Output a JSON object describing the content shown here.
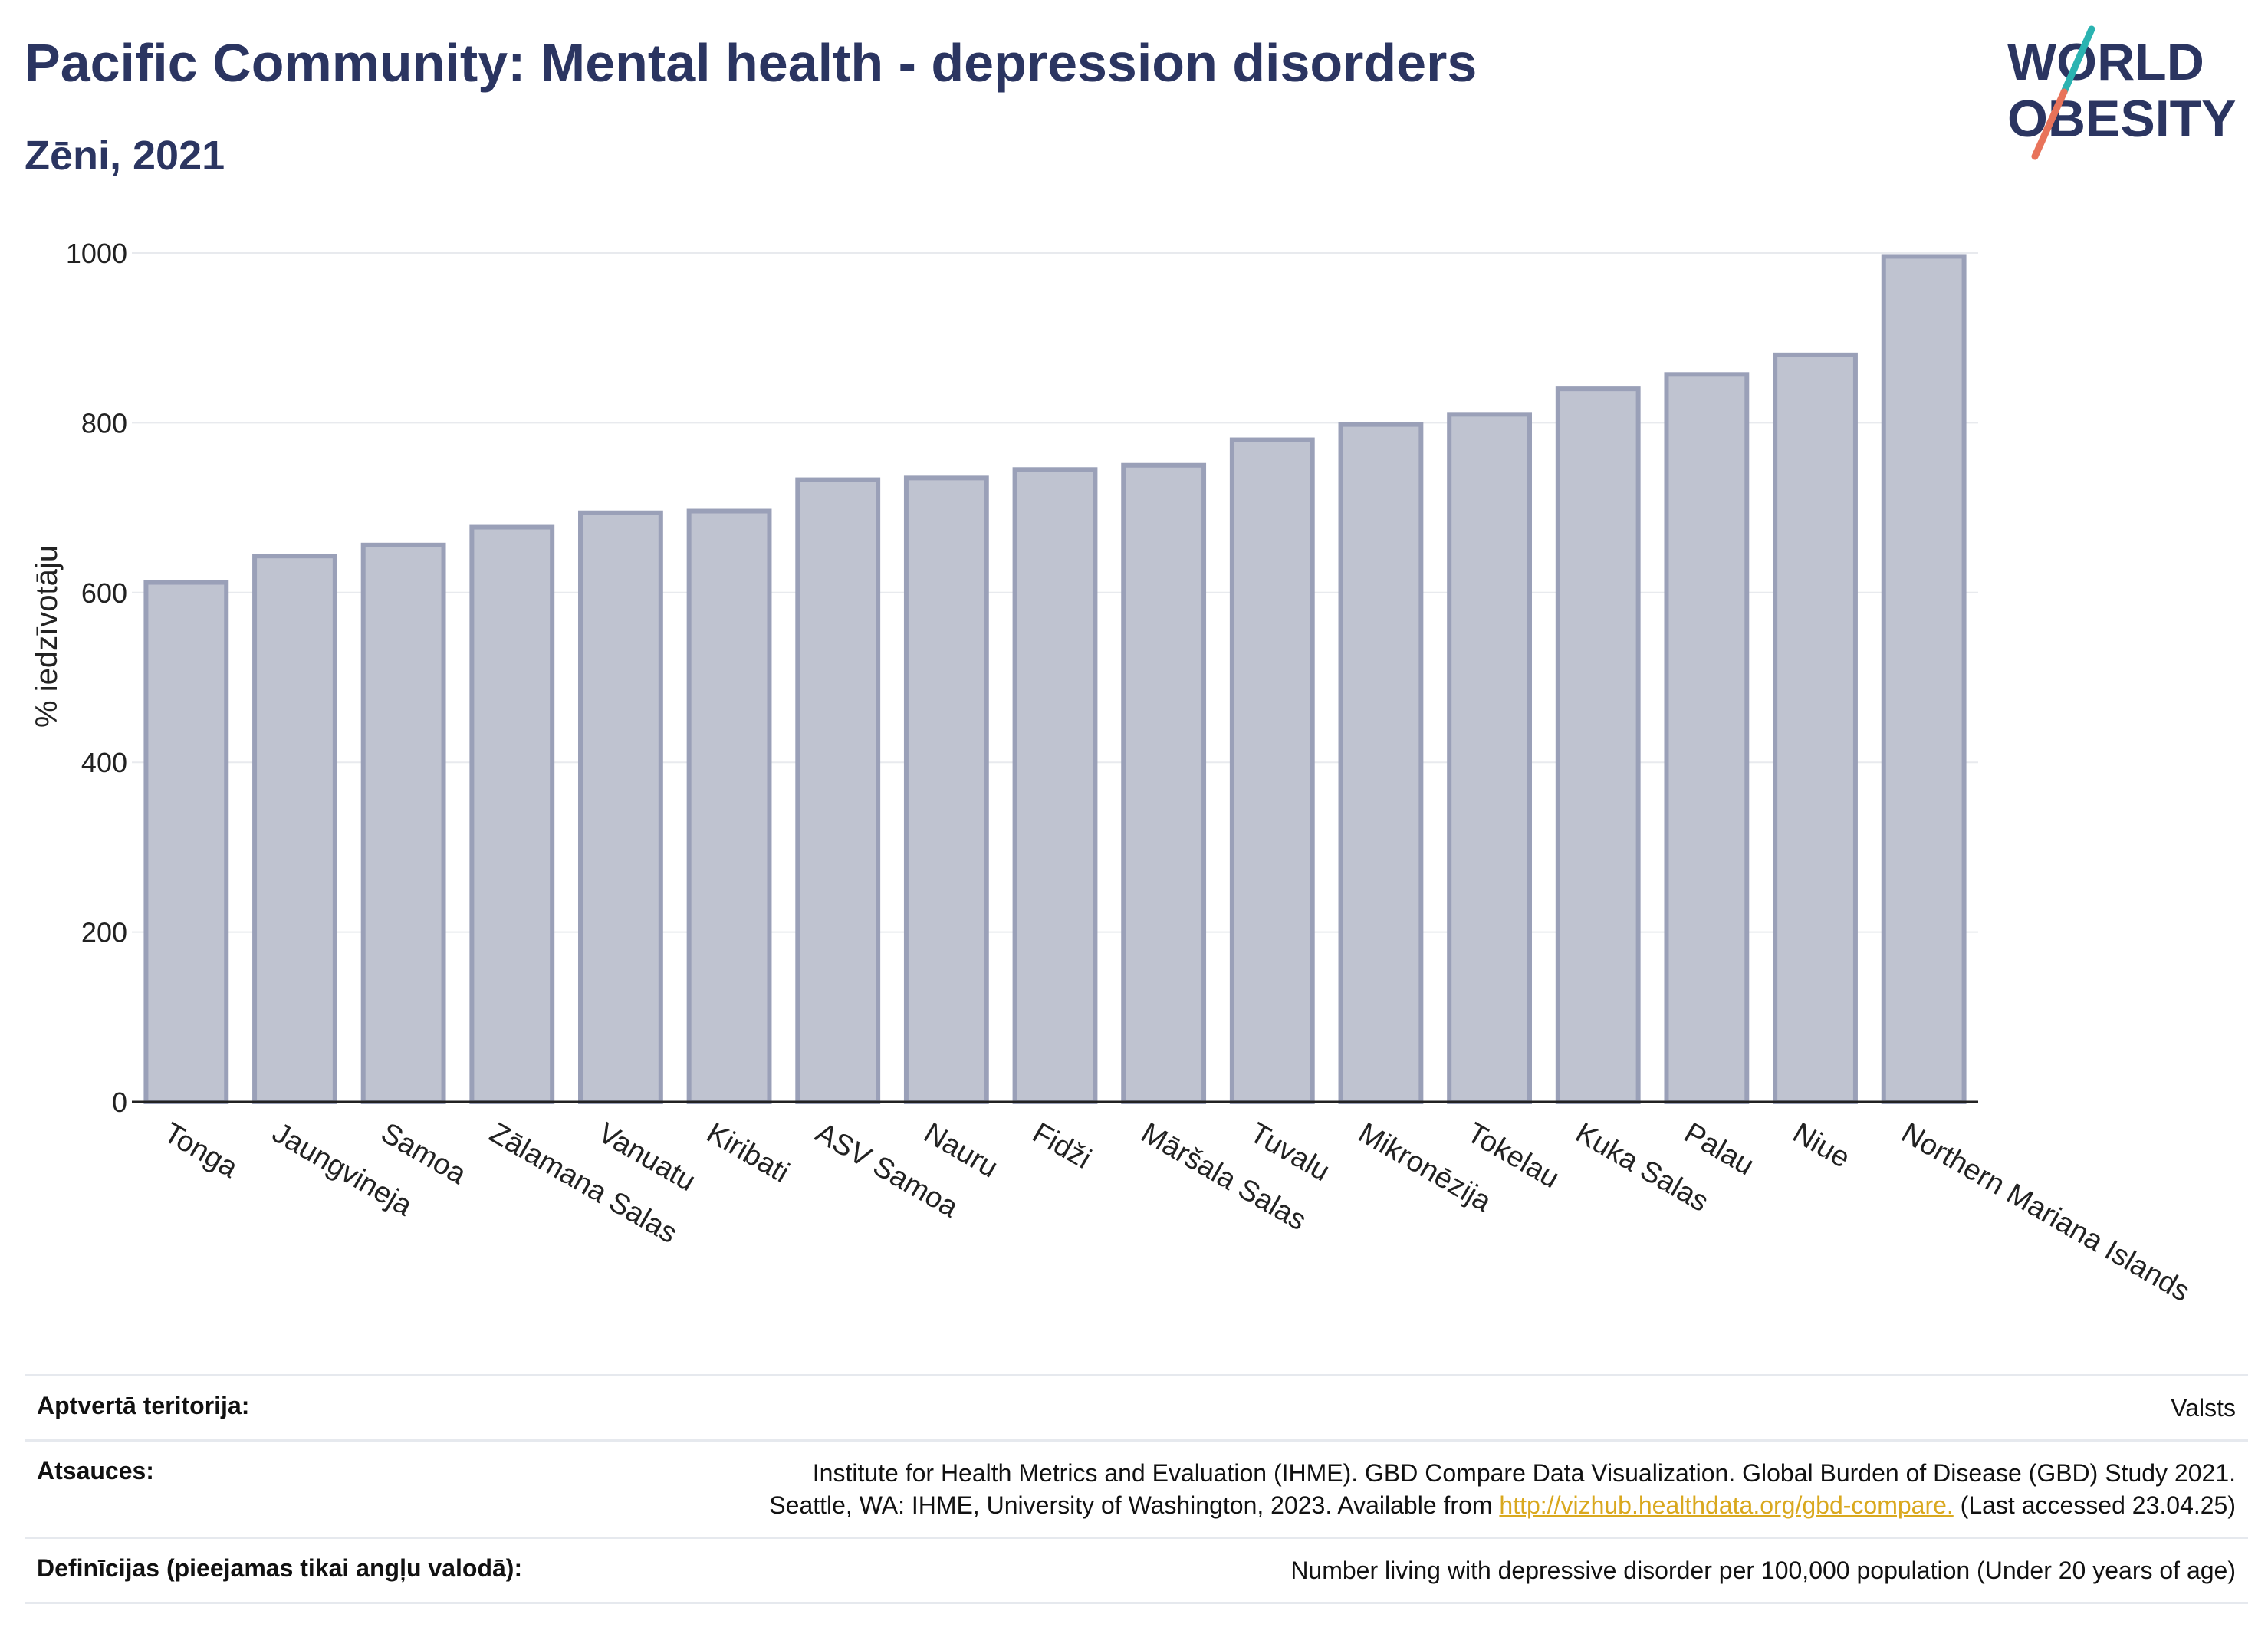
{
  "header": {
    "title": "Pacific Community: Mental health - depression disorders",
    "subtitle": "Zēni, 2021"
  },
  "logo": {
    "line1": "WORLD",
    "line2": "OBESITY"
  },
  "chart_data": {
    "type": "bar",
    "title": "Pacific Community: Mental health - depression disorders",
    "subtitle": "Zēni, 2021",
    "ylabel": "% iedzīvotāju",
    "xlabel": "",
    "ylim": [
      0,
      1000
    ],
    "yticks": [
      0,
      200,
      400,
      600,
      800,
      1000
    ],
    "grid": true,
    "bar_color": "#bfc3d0",
    "bar_edge_color": "#9aa0b8",
    "categories": [
      "Tonga",
      "Jaungvineja",
      "Samoa",
      "Zālamana Salas",
      "Vanuatu",
      "Kiribati",
      "ASV Samoa",
      "Nauru",
      "Fidži",
      "Māršala Salas",
      "Tuvalu",
      "Mikronēzija",
      "Tokelau",
      "Kuka Salas",
      "Palau",
      "Niue",
      "Northern Mariana Islands"
    ],
    "values": [
      612,
      643,
      656,
      677,
      694,
      696,
      733,
      735,
      745,
      750,
      780,
      798,
      810,
      840,
      857,
      880,
      996
    ]
  },
  "info": {
    "coverage_label": "Aptvertā teritorija:",
    "coverage_value": "Valsts",
    "sources_label": "Atsauces:",
    "sources_line1": "Institute for Health Metrics and Evaluation (IHME). GBD Compare Data Visualization. Global Burden of Disease (GBD) Study 2021.",
    "sources_line2_prefix": "Seattle, WA: IHME, University of Washington, 2023. Available from ",
    "sources_link": "http://vizhub.healthdata.org/gbd-compare.",
    "sources_line2_suffix": " (Last accessed 23.04.25)",
    "definitions_label": "Definīcijas (pieejamas tikai angļu valodā):",
    "definitions_value": "Number living with depressive disorder per 100,000 population (Under 20 years of age)"
  },
  "colors": {
    "title": "#2b3561",
    "link": "#d9a81e",
    "logo_teal": "#2bb3b1",
    "logo_coral": "#e8735a"
  }
}
